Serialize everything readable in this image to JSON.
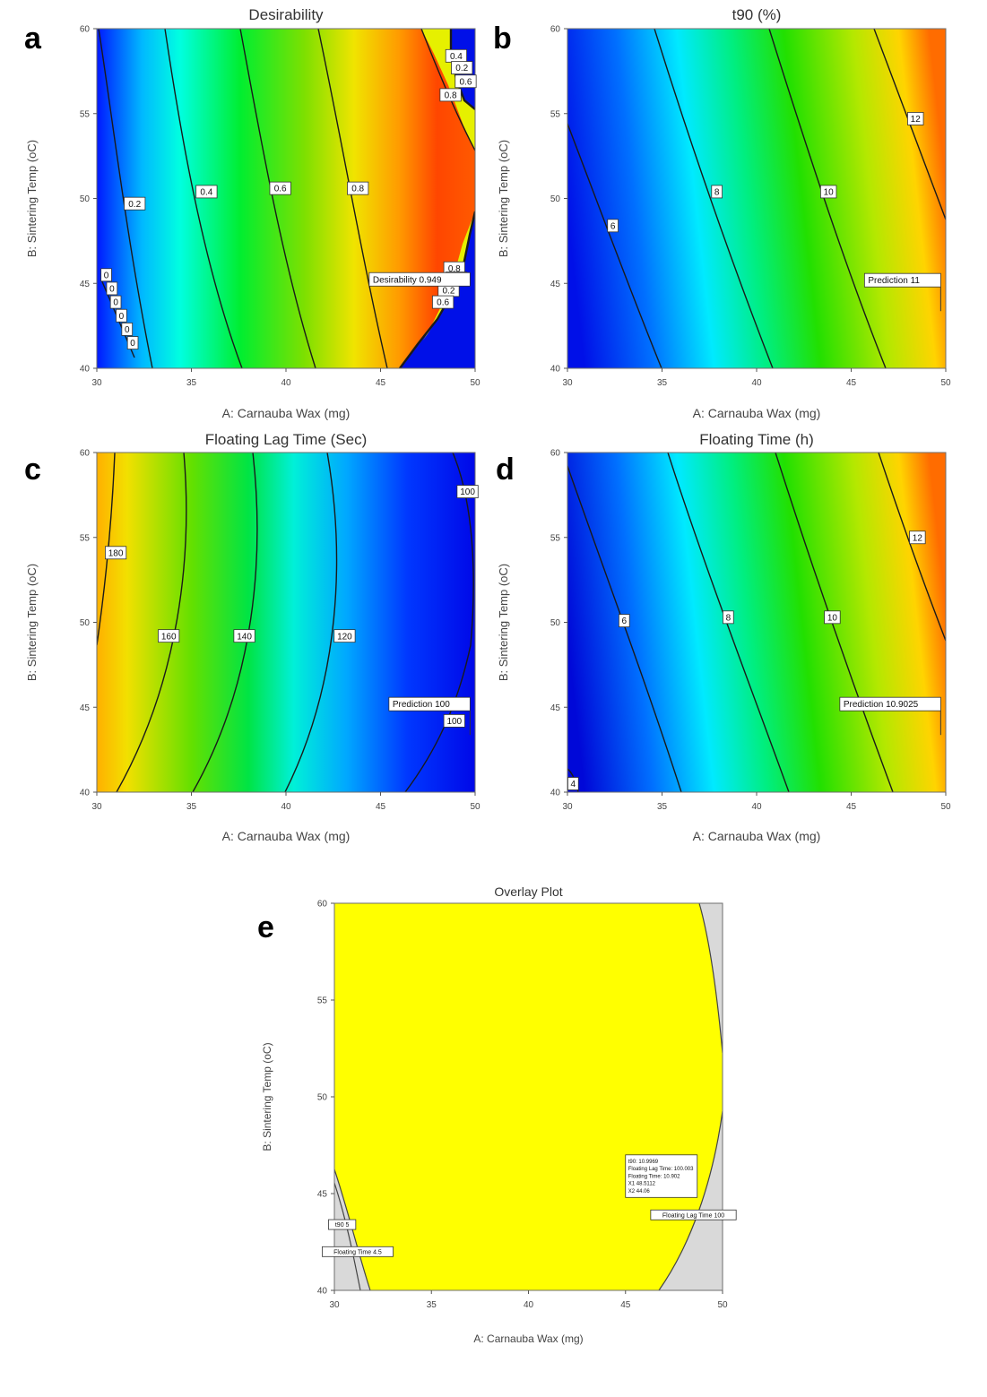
{
  "figure": {
    "panel_letters": [
      "a",
      "b",
      "c",
      "d",
      "e"
    ]
  },
  "chart_data": [
    {
      "type": "heatmap",
      "panel": "a",
      "title": "Desirability",
      "xlabel": "A: Carnauba Wax (mg)",
      "ylabel": "B: Sintering Temp (oC)",
      "xlim": [
        30,
        50
      ],
      "ylim": [
        40,
        60
      ],
      "xticks": [
        "30",
        "35",
        "40",
        "45",
        "50"
      ],
      "yticks": [
        "40",
        "45",
        "50",
        "55",
        "60"
      ],
      "colorscale": [
        "#0000ff",
        "#00ffff",
        "#00ff00",
        "#ffff00",
        "#ff0000"
      ],
      "contour_levels": [
        0.2,
        0.4,
        0.6,
        0.8
      ],
      "contour_labels": [
        "0.2",
        "0.4",
        "0.6",
        "0.8",
        "0",
        "0",
        "0",
        "0",
        "0",
        "0",
        "0.4",
        "0.2",
        "0.6",
        "0.8",
        "0.8",
        "0.4",
        "0.2",
        "0.6"
      ],
      "flag": "Desirability  0.949",
      "flag_point": [
        48.5,
        45
      ]
    },
    {
      "type": "heatmap",
      "panel": "b",
      "title": "t90 (%)",
      "xlabel": "A: Carnauba Wax (mg)",
      "ylabel": "B: Sintering Temp (oC)",
      "xlim": [
        30,
        50
      ],
      "ylim": [
        40,
        60
      ],
      "xticks": [
        "30",
        "35",
        "40",
        "45",
        "50"
      ],
      "yticks": [
        "40",
        "45",
        "50",
        "55",
        "60"
      ],
      "colorscale": [
        "#0000ff",
        "#00ffff",
        "#00ff00",
        "#ffff00",
        "#ff0000"
      ],
      "contour_levels": [
        6,
        8,
        10,
        12
      ],
      "contour_labels": [
        "6",
        "8",
        "10",
        "12"
      ],
      "flag": "Prediction  11",
      "flag_point": [
        48.5,
        44
      ]
    },
    {
      "type": "heatmap",
      "panel": "c",
      "title": "Floating Lag Time (Sec)",
      "xlabel": "A: Carnauba Wax (mg)",
      "ylabel": "B: Sintering Temp (oC)",
      "xlim": [
        30,
        50
      ],
      "ylim": [
        40,
        60
      ],
      "xticks": [
        "30",
        "35",
        "40",
        "45",
        "50"
      ],
      "yticks": [
        "40",
        "45",
        "50",
        "55",
        "60"
      ],
      "colorscale": [
        "#0000ff",
        "#00ffff",
        "#00ff00",
        "#ffff00",
        "#ff0000"
      ],
      "contour_levels": [
        100,
        120,
        140,
        160,
        180
      ],
      "contour_labels": [
        "180",
        "160",
        "140",
        "120",
        "100",
        "100"
      ],
      "flag": "Prediction  100",
      "flag_point": [
        48.5,
        44
      ]
    },
    {
      "type": "heatmap",
      "panel": "d",
      "title": "Floating Time (h)",
      "xlabel": "A: Carnauba Wax (mg)",
      "ylabel": "B: Sintering Temp (oC)",
      "xlim": [
        30,
        50
      ],
      "ylim": [
        40,
        60
      ],
      "xticks": [
        "30",
        "35",
        "40",
        "45",
        "50"
      ],
      "yticks": [
        "40",
        "45",
        "50",
        "55",
        "60"
      ],
      "colorscale": [
        "#0000ff",
        "#00ffff",
        "#00ff00",
        "#ffff00",
        "#ff0000"
      ],
      "contour_levels": [
        4,
        6,
        8,
        10,
        12
      ],
      "contour_labels": [
        "6",
        "8",
        "10",
        "12",
        "4"
      ],
      "flag": "Prediction  10.9025",
      "flag_point": [
        48.5,
        44
      ]
    },
    {
      "type": "area",
      "panel": "e",
      "title": "Overlay Plot",
      "xlabel": "A: Carnauba Wax (mg)",
      "ylabel": "B: Sintering Temp (oC)",
      "xlim": [
        30,
        50
      ],
      "ylim": [
        40,
        60
      ],
      "xticks": [
        "30",
        "35",
        "40",
        "45",
        "50"
      ],
      "yticks": [
        "40",
        "45",
        "50",
        "55",
        "60"
      ],
      "feasible_color": "#ffff00",
      "infeasible_color": "#d9d9d9",
      "region_labels": [
        "t90  5",
        "Floating Time  4.5",
        "Floating Lag Time  100"
      ],
      "flag_lines": [
        "t90:  10.9969",
        "Floating Lag Time:  100.003",
        "Floating Time:  10.902",
        "X1  48.5112",
        "X2  44.06"
      ],
      "flag_point": [
        48.5,
        44
      ]
    }
  ]
}
